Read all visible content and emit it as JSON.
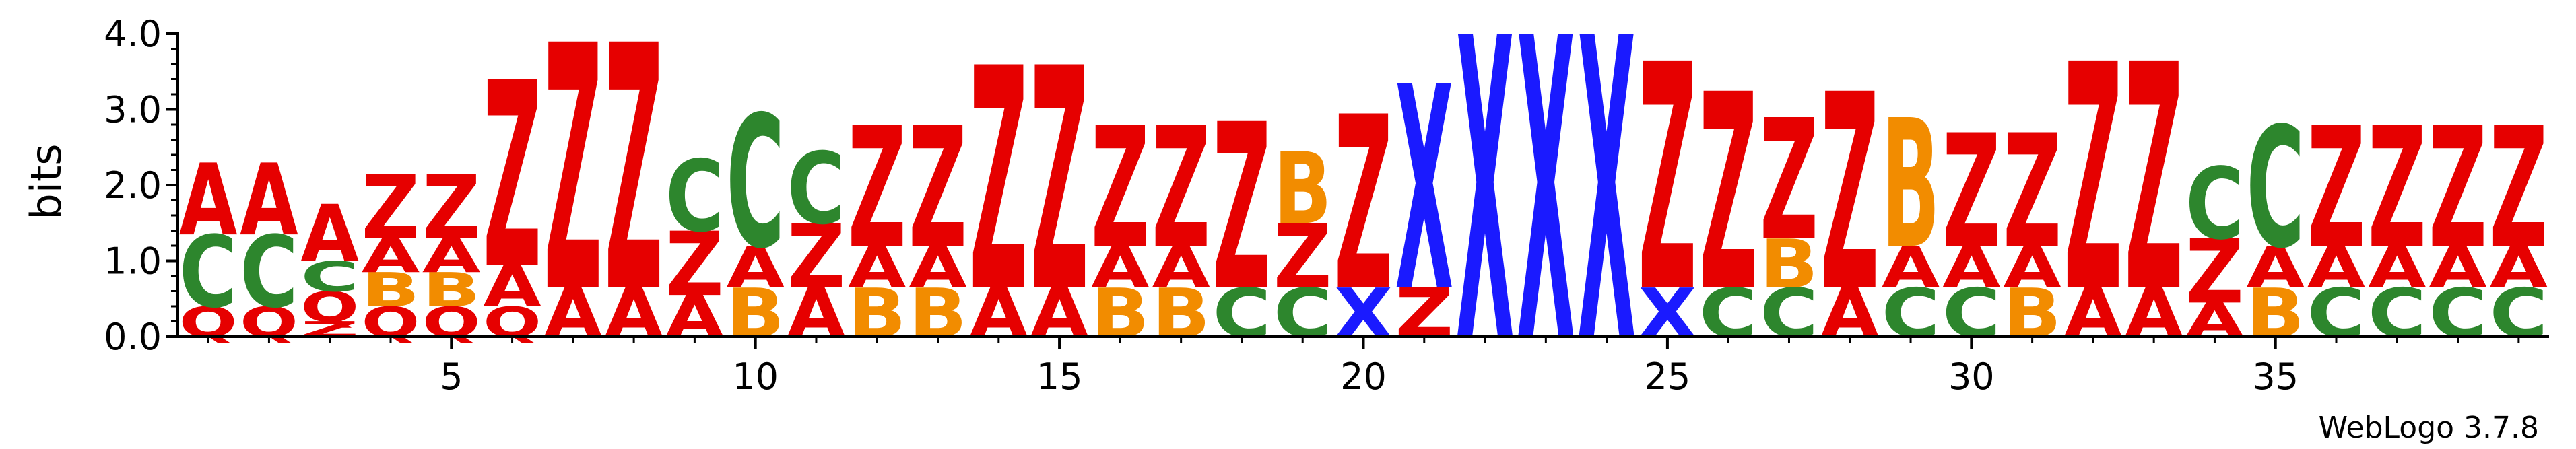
{
  "chart_data": {
    "type": "sequence-logo",
    "ylabel": "bits",
    "ylim": [
      0,
      4.0
    ],
    "xlim": [
      1,
      39
    ],
    "y_ticks": [
      "0.0",
      "1.0",
      "2.0",
      "3.0",
      "4.0"
    ],
    "x_ticks": [
      "5",
      "10",
      "15",
      "20",
      "25",
      "30",
      "35"
    ],
    "x_tick_values": [
      5,
      10,
      15,
      20,
      25,
      30,
      35
    ],
    "footer": "WebLogo 3.7.8",
    "colors": {
      "A": "#e60000",
      "Z": "#e60000",
      "Q": "#e60000",
      "C": "#2d862d",
      "B": "#f28c00",
      "X": "#1a1aff"
    },
    "positions": [
      {
        "pos": 1,
        "stack": [
          [
            "Q",
            0.4
          ],
          [
            "C",
            0.95
          ],
          [
            "A",
            0.95
          ]
        ]
      },
      {
        "pos": 2,
        "stack": [
          [
            "Q",
            0.4
          ],
          [
            "C",
            0.95
          ],
          [
            "A",
            0.95
          ]
        ]
      },
      {
        "pos": 3,
        "stack": [
          [
            "Z",
            0.2
          ],
          [
            "Q",
            0.4
          ],
          [
            "C",
            0.4
          ],
          [
            "A",
            0.75
          ]
        ]
      },
      {
        "pos": 4,
        "stack": [
          [
            "Q",
            0.4
          ],
          [
            "B",
            0.45
          ],
          [
            "A",
            0.45
          ],
          [
            "Z",
            0.85
          ]
        ]
      },
      {
        "pos": 5,
        "stack": [
          [
            "Q",
            0.4
          ],
          [
            "B",
            0.45
          ],
          [
            "A",
            0.45
          ],
          [
            "Z",
            0.85
          ]
        ]
      },
      {
        "pos": 6,
        "stack": [
          [
            "Q",
            0.4
          ],
          [
            "A",
            0.55
          ],
          [
            "Z",
            2.45
          ]
        ]
      },
      {
        "pos": 7,
        "stack": [
          [
            "A",
            0.65
          ],
          [
            "Z",
            3.25
          ]
        ]
      },
      {
        "pos": 8,
        "stack": [
          [
            "A",
            0.65
          ],
          [
            "Z",
            3.25
          ]
        ]
      },
      {
        "pos": 9,
        "stack": [
          [
            "A",
            0.55
          ],
          [
            "Z",
            0.85
          ],
          [
            "C",
            0.95
          ]
        ]
      },
      {
        "pos": 10,
        "stack": [
          [
            "B",
            0.65
          ],
          [
            "A",
            0.55
          ],
          [
            "C",
            1.75
          ]
        ]
      },
      {
        "pos": 11,
        "stack": [
          [
            "A",
            0.65
          ],
          [
            "Z",
            0.85
          ],
          [
            "C",
            0.95
          ]
        ]
      },
      {
        "pos": 12,
        "stack": [
          [
            "B",
            0.65
          ],
          [
            "A",
            0.55
          ],
          [
            "Z",
            1.6
          ]
        ]
      },
      {
        "pos": 13,
        "stack": [
          [
            "B",
            0.65
          ],
          [
            "A",
            0.55
          ],
          [
            "Z",
            1.6
          ]
        ]
      },
      {
        "pos": 14,
        "stack": [
          [
            "A",
            0.65
          ],
          [
            "Z",
            2.95
          ]
        ]
      },
      {
        "pos": 15,
        "stack": [
          [
            "A",
            0.65
          ],
          [
            "Z",
            2.95
          ]
        ]
      },
      {
        "pos": 16,
        "stack": [
          [
            "B",
            0.65
          ],
          [
            "A",
            0.55
          ],
          [
            "Z",
            1.6
          ]
        ]
      },
      {
        "pos": 17,
        "stack": [
          [
            "B",
            0.65
          ],
          [
            "A",
            0.55
          ],
          [
            "Z",
            1.6
          ]
        ]
      },
      {
        "pos": 18,
        "stack": [
          [
            "C",
            0.65
          ],
          [
            "Z",
            2.2
          ]
        ]
      },
      {
        "pos": 19,
        "stack": [
          [
            "C",
            0.65
          ],
          [
            "Z",
            0.85
          ],
          [
            "B",
            0.95
          ]
        ]
      },
      {
        "pos": 20,
        "stack": [
          [
            "X",
            0.65
          ],
          [
            "Z",
            2.3
          ]
        ]
      },
      {
        "pos": 21,
        "stack": [
          [
            "Z",
            0.65
          ],
          [
            "X",
            2.7
          ]
        ]
      },
      {
        "pos": 22,
        "stack": [
          [
            "X",
            4.0
          ]
        ]
      },
      {
        "pos": 23,
        "stack": [
          [
            "X",
            4.0
          ]
        ]
      },
      {
        "pos": 24,
        "stack": [
          [
            "X",
            4.0
          ]
        ]
      },
      {
        "pos": 25,
        "stack": [
          [
            "X",
            0.65
          ],
          [
            "Z",
            3.0
          ]
        ]
      },
      {
        "pos": 26,
        "stack": [
          [
            "C",
            0.65
          ],
          [
            "Z",
            2.6
          ]
        ]
      },
      {
        "pos": 27,
        "stack": [
          [
            "C",
            0.65
          ],
          [
            "B",
            0.65
          ],
          [
            "Z",
            1.6
          ]
        ]
      },
      {
        "pos": 28,
        "stack": [
          [
            "A",
            0.65
          ],
          [
            "Z",
            2.6
          ]
        ]
      },
      {
        "pos": 29,
        "stack": [
          [
            "C",
            0.65
          ],
          [
            "A",
            0.55
          ],
          [
            "B",
            1.7
          ]
        ]
      },
      {
        "pos": 30,
        "stack": [
          [
            "C",
            0.65
          ],
          [
            "A",
            0.55
          ],
          [
            "Z",
            1.5
          ]
        ]
      },
      {
        "pos": 31,
        "stack": [
          [
            "B",
            0.65
          ],
          [
            "A",
            0.55
          ],
          [
            "Z",
            1.5
          ]
        ]
      },
      {
        "pos": 32,
        "stack": [
          [
            "A",
            0.65
          ],
          [
            "Z",
            3.0
          ]
        ]
      },
      {
        "pos": 33,
        "stack": [
          [
            "A",
            0.65
          ],
          [
            "Z",
            3.0
          ]
        ]
      },
      {
        "pos": 34,
        "stack": [
          [
            "A",
            0.45
          ],
          [
            "Z",
            0.85
          ],
          [
            "C",
            0.95
          ]
        ]
      },
      {
        "pos": 35,
        "stack": [
          [
            "B",
            0.65
          ],
          [
            "A",
            0.55
          ],
          [
            "C",
            1.6
          ]
        ]
      },
      {
        "pos": 36,
        "stack": [
          [
            "C",
            0.65
          ],
          [
            "A",
            0.55
          ],
          [
            "Z",
            1.6
          ]
        ]
      },
      {
        "pos": 37,
        "stack": [
          [
            "C",
            0.65
          ],
          [
            "A",
            0.55
          ],
          [
            "Z",
            1.6
          ]
        ]
      },
      {
        "pos": 38,
        "stack": [
          [
            "C",
            0.65
          ],
          [
            "A",
            0.55
          ],
          [
            "Z",
            1.6
          ]
        ]
      },
      {
        "pos": 39,
        "stack": [
          [
            "C",
            0.65
          ],
          [
            "A",
            0.55
          ],
          [
            "Z",
            1.6
          ]
        ]
      }
    ]
  }
}
